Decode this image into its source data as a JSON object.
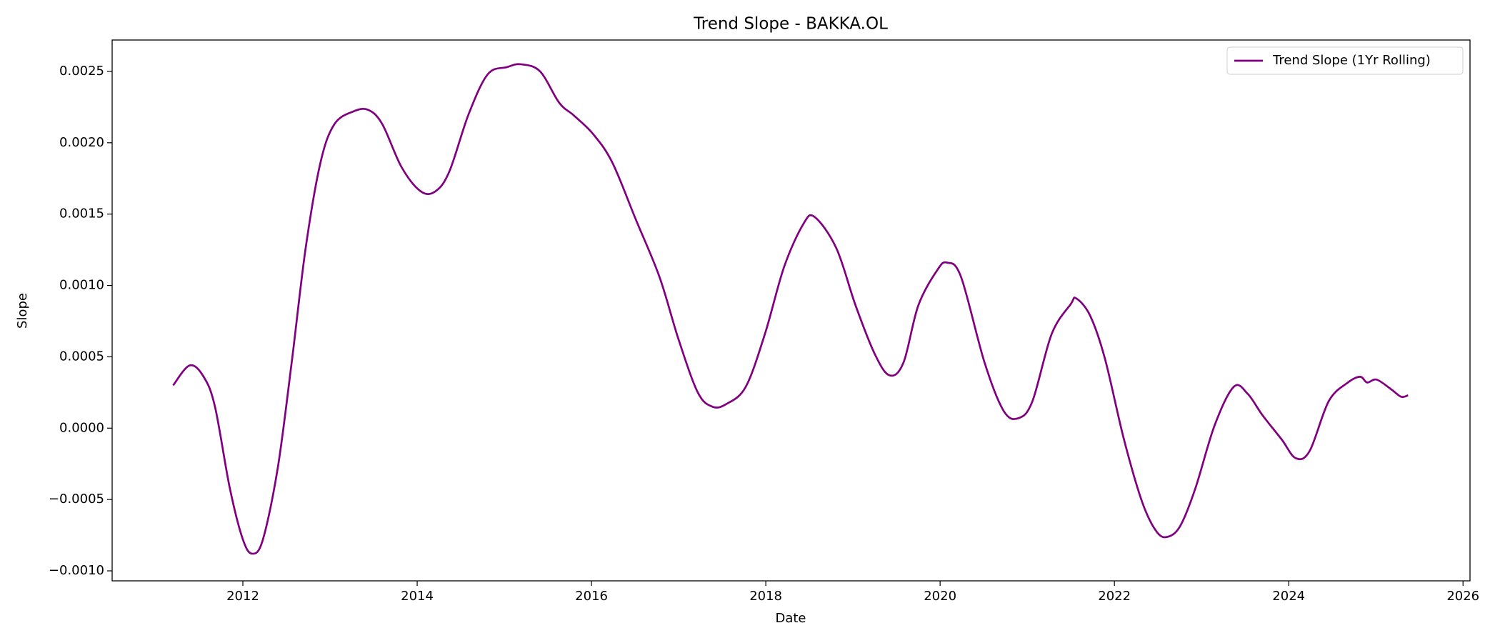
{
  "chart_data": {
    "type": "line",
    "title": "Trend Slope - BAKKA.OL",
    "x_label": "Date",
    "y_label": "Slope",
    "legend": "upper right",
    "series": [
      {
        "name": "Trend Slope (1Yr Rolling)",
        "color": "#800080",
        "x": [
          2011.2,
          2011.39,
          2011.55,
          2011.68,
          2011.85,
          2012.0,
          2012.11,
          2012.23,
          2012.4,
          2012.56,
          2012.72,
          2012.89,
          2013.05,
          2013.27,
          2013.44,
          2013.6,
          2013.82,
          2014.04,
          2014.21,
          2014.37,
          2014.59,
          2014.81,
          2015.03,
          2015.19,
          2015.41,
          2015.63,
          2015.8,
          2016.02,
          2016.24,
          2016.51,
          2016.78,
          2017.0,
          2017.22,
          2017.39,
          2017.55,
          2017.77,
          2017.99,
          2018.21,
          2018.43,
          2018.56,
          2018.81,
          2019.03,
          2019.25,
          2019.42,
          2019.58,
          2019.75,
          2019.97,
          2020.08,
          2020.24,
          2020.51,
          2020.73,
          2020.9,
          2021.06,
          2021.28,
          2021.5,
          2021.56,
          2021.72,
          2021.89,
          2022.11,
          2022.32,
          2022.49,
          2022.62,
          2022.76,
          2022.93,
          2023.15,
          2023.37,
          2023.53,
          2023.7,
          2023.92,
          2024.08,
          2024.24,
          2024.46,
          2024.68,
          2024.82,
          2024.9,
          2025.01,
          2025.18,
          2025.29,
          2025.37
        ],
        "values": [
          0.0003,
          0.00044,
          0.00036,
          0.00015,
          -0.00042,
          -0.00078,
          -0.00088,
          -0.00078,
          -0.00028,
          0.00046,
          0.00126,
          0.00186,
          0.00213,
          0.00222,
          0.00223,
          0.00213,
          0.00183,
          0.00166,
          0.00166,
          0.0018,
          0.0022,
          0.00248,
          0.00253,
          0.00255,
          0.0025,
          0.00228,
          0.00219,
          0.00206,
          0.00186,
          0.00146,
          0.00106,
          0.00062,
          0.00025,
          0.00015,
          0.00017,
          0.00029,
          0.00066,
          0.00113,
          0.00143,
          0.00148,
          0.00126,
          0.00086,
          0.00052,
          0.00037,
          0.00046,
          0.00086,
          0.00111,
          0.00116,
          0.00106,
          0.00046,
          0.00012,
          7e-05,
          0.00019,
          0.00066,
          0.00087,
          0.00091,
          0.00079,
          0.00049,
          -8e-05,
          -0.00052,
          -0.00073,
          -0.00076,
          -0.00068,
          -0.00042,
          2e-05,
          0.00029,
          0.00024,
          9e-05,
          -8e-05,
          -0.00021,
          -0.00016,
          0.00019,
          0.00032,
          0.00036,
          0.00032,
          0.00034,
          0.00027,
          0.00022,
          0.00023
        ]
      }
    ],
    "xlim": [
      2010.5,
      2026.08
    ],
    "xticks": [
      2012,
      2014,
      2016,
      2018,
      2020,
      2022,
      2024,
      2026
    ],
    "ylim": [
      -0.00107,
      0.00272
    ],
    "yticks": [
      {
        "value": -0.001,
        "label": "−0.0010"
      },
      {
        "value": -0.0005,
        "label": "−0.0005"
      },
      {
        "value": 0,
        "label": "0.0000"
      },
      {
        "value": 0.0005,
        "label": "0.0005"
      },
      {
        "value": 0.001,
        "label": "0.0010"
      },
      {
        "value": 0.0015,
        "label": "0.0015"
      },
      {
        "value": 0.002,
        "label": "0.0020"
      },
      {
        "value": 0.0025,
        "label": "0.0025"
      }
    ]
  }
}
